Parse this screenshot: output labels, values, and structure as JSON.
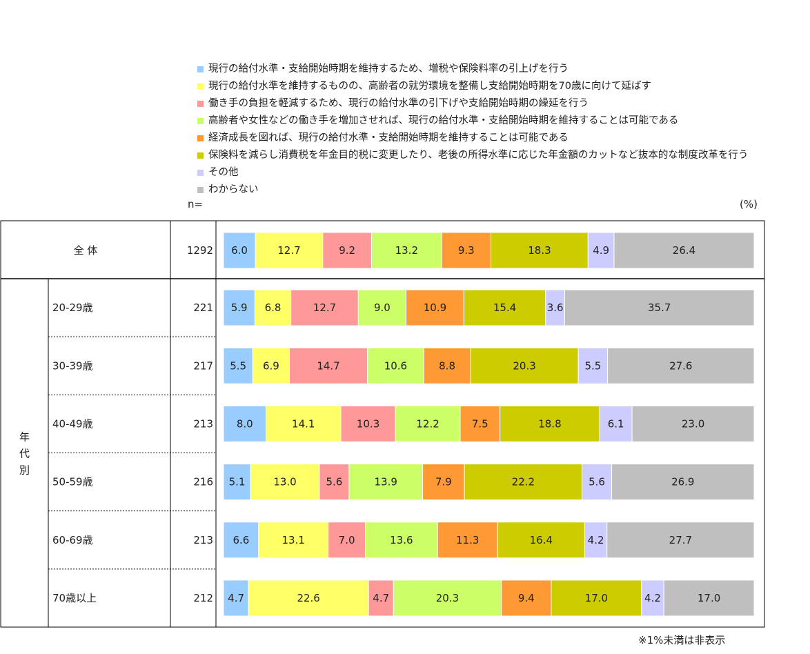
{
  "chart_data": {
    "type": "bar",
    "stacked": true,
    "orientation": "horizontal",
    "unit_label": "(%)",
    "n_header": "n=",
    "footnote": "※1%未満は非表示",
    "legend_placement": "top",
    "series": [
      {
        "name": "現行の給付水準・支給開始時期を維持するため、増税や保険料率の引上げを行う",
        "color": "#99ccff"
      },
      {
        "name": "現行の給付水準を維持するものの、高齢者の就労環境を整備し支給開始時期を70歳に向けて延ばす",
        "color": "#ffff66"
      },
      {
        "name": "働き手の負担を軽減するため、現行の給付水準の引下げや支給開始時期の繰延を行う",
        "color": "#ff9999"
      },
      {
        "name": "高齢者や女性などの働き手を増加させれば、現行の給付水準・支給開始時期を維持することは可能である",
        "color": "#ccff66"
      },
      {
        "name": "経済成長を図れば、現行の給付水準・支給開始時期を維持することは可能である",
        "color": "#ff9933"
      },
      {
        "name": "保険料を減らし消費税を年金目的税に変更したり、老後の所得水準に応じた年金額のカットなど抜本的な制度改革を行う",
        "color": "#cccc00"
      },
      {
        "name": "その他",
        "color": "#ccccff"
      },
      {
        "name": "わからない",
        "color": "#bfbfbf"
      }
    ],
    "total_row": {
      "label": "全 体",
      "n": "1292",
      "values": [
        6.0,
        12.7,
        9.2,
        13.2,
        9.3,
        18.3,
        4.9,
        26.4
      ]
    },
    "group_label": "年代別",
    "rows": [
      {
        "label": "20-29歳",
        "n": "221",
        "values": [
          5.9,
          6.8,
          12.7,
          9.0,
          10.9,
          15.4,
          3.6,
          35.7
        ]
      },
      {
        "label": "30-39歳",
        "n": "217",
        "values": [
          5.5,
          6.9,
          14.7,
          10.6,
          8.8,
          20.3,
          5.5,
          27.6
        ]
      },
      {
        "label": "40-49歳",
        "n": "213",
        "values": [
          8.0,
          14.1,
          10.3,
          12.2,
          7.5,
          18.8,
          6.1,
          23.0
        ]
      },
      {
        "label": "50-59歳",
        "n": "216",
        "values": [
          5.1,
          13.0,
          5.6,
          13.9,
          7.9,
          22.2,
          5.6,
          26.9
        ]
      },
      {
        "label": "60-69歳",
        "n": "213",
        "values": [
          6.6,
          13.1,
          7.0,
          13.6,
          11.3,
          16.4,
          4.2,
          27.7
        ]
      },
      {
        "label": "70歳以上",
        "n": "212",
        "values": [
          4.7,
          22.6,
          4.7,
          20.3,
          9.4,
          17.0,
          4.2,
          17.0
        ]
      }
    ]
  }
}
